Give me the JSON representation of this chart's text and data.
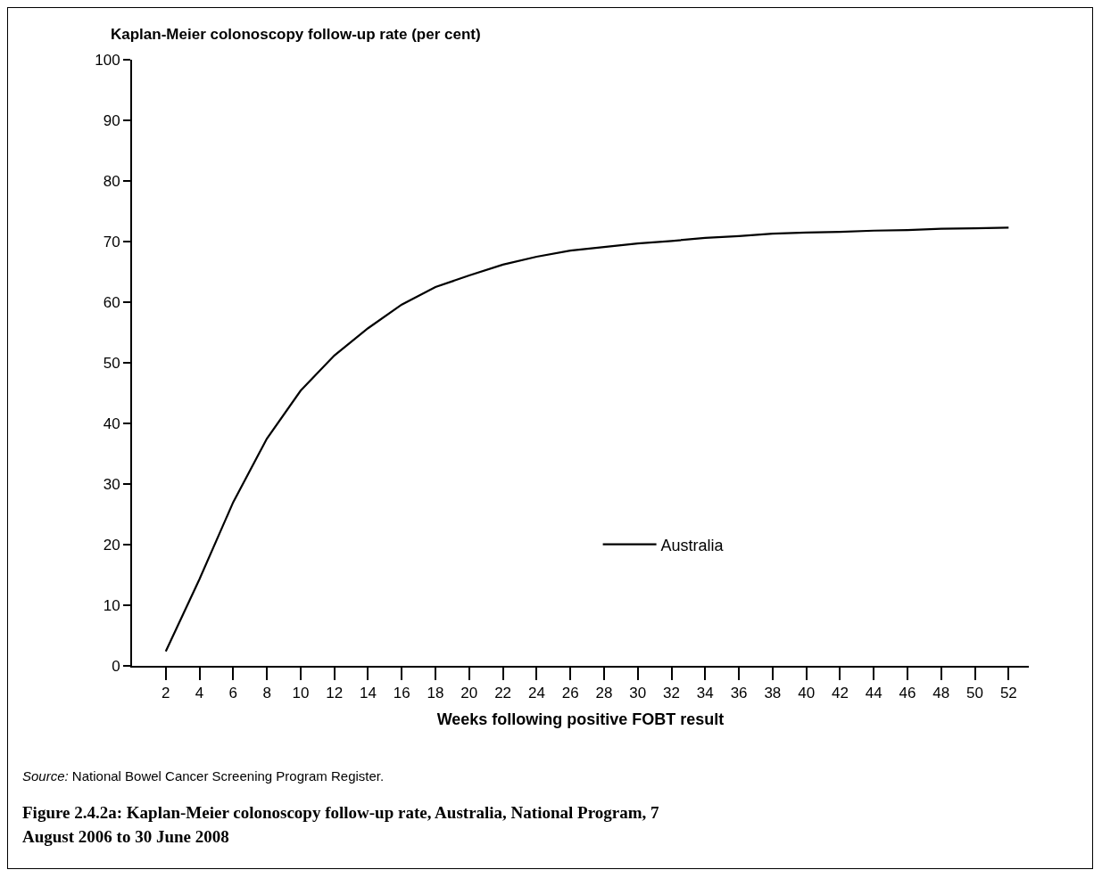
{
  "chart_data": {
    "type": "line",
    "title": "Figure 2.4.2a: Kaplan-Meier colonoscopy follow-up rate, Australia, National Program, 7 August 2006 to 30 June 2008",
    "xlabel": "Weeks following positive FOBT result",
    "ylabel": "Kaplan-Meier colonoscopy follow-up rate (per cent)",
    "annotations": [
      "Source: National Bowel Cancer Screening Program Register."
    ],
    "x": [
      2,
      4,
      6,
      8,
      10,
      12,
      14,
      16,
      18,
      20,
      22,
      24,
      26,
      28,
      30,
      32,
      34,
      36,
      38,
      40,
      42,
      44,
      46,
      48,
      50,
      52
    ],
    "series": [
      {
        "name": "Australia",
        "color": "#000000",
        "values": [
          2.4,
          14.3,
          27,
          37.5,
          45.4,
          51.2,
          55.7,
          59.6,
          62.5,
          64.4,
          66.2,
          67.5,
          68.5,
          69.1,
          69.7,
          70.1,
          70.6,
          70.9,
          71.3,
          71.5,
          71.6,
          71.8,
          71.9,
          72.1,
          72.2,
          72.3
        ]
      }
    ],
    "xlim": [
      0,
      53.2
    ],
    "xticks": [
      2,
      4,
      6,
      8,
      10,
      12,
      14,
      16,
      18,
      20,
      22,
      24,
      26,
      28,
      30,
      32,
      34,
      36,
      38,
      40,
      42,
      44,
      46,
      48,
      50,
      52
    ],
    "ylim": [
      0,
      100
    ],
    "yticks": [
      0,
      10,
      20,
      30,
      40,
      50,
      60,
      70,
      80,
      90,
      100
    ],
    "grid": false,
    "legend": "bottom",
    "marker": "none",
    "line_style": "solid"
  }
}
